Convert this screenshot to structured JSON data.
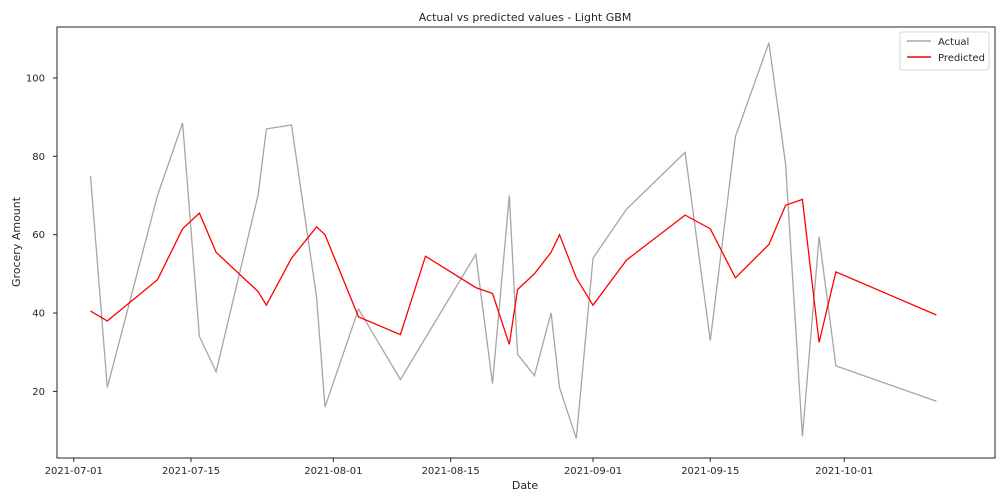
{
  "chart_data": {
    "type": "line",
    "title": "Actual vs predicted values - Light GBM",
    "xlabel": "Date",
    "ylabel": "Grocery Amount",
    "xlim": [
      "2021-06-29",
      "2021-10-19"
    ],
    "ylim": [
      3,
      113
    ],
    "x_ticks": [
      "2021-07-01",
      "2021-07-15",
      "2021-08-01",
      "2021-08-15",
      "2021-09-01",
      "2021-09-15",
      "2021-10-01"
    ],
    "y_ticks": [
      20,
      40,
      60,
      80,
      100
    ],
    "grid": false,
    "legend_position": "top-right",
    "series": [
      {
        "name": "Actual",
        "color": "#a6a6a6",
        "points": [
          [
            "2021-07-03",
            75
          ],
          [
            "2021-07-05",
            21
          ],
          [
            "2021-07-11",
            70
          ],
          [
            "2021-07-14",
            88.5
          ],
          [
            "2021-07-16",
            34
          ],
          [
            "2021-07-18",
            25
          ],
          [
            "2021-07-23",
            70
          ],
          [
            "2021-07-24",
            87
          ],
          [
            "2021-07-27",
            88
          ],
          [
            "2021-07-30",
            44
          ],
          [
            "2021-07-31",
            16
          ],
          [
            "2021-08-04",
            41
          ],
          [
            "2021-08-09",
            23
          ],
          [
            "2021-08-18",
            55
          ],
          [
            "2021-08-20",
            22
          ],
          [
            "2021-08-22",
            70
          ],
          [
            "2021-08-23",
            29.5
          ],
          [
            "2021-08-25",
            24
          ],
          [
            "2021-08-27",
            40
          ],
          [
            "2021-08-28",
            21
          ],
          [
            "2021-08-30",
            8
          ],
          [
            "2021-09-01",
            54
          ],
          [
            "2021-09-05",
            66.5
          ],
          [
            "2021-09-12",
            81
          ],
          [
            "2021-09-15",
            33
          ],
          [
            "2021-09-18",
            85
          ],
          [
            "2021-09-22",
            109
          ],
          [
            "2021-09-24",
            78
          ],
          [
            "2021-09-26",
            8.5
          ],
          [
            "2021-09-28",
            59.5
          ],
          [
            "2021-09-30",
            26.5
          ],
          [
            "2021-10-12",
            17.5
          ]
        ]
      },
      {
        "name": "Predicted",
        "color": "#ff0000",
        "points": [
          [
            "2021-07-03",
            40.5
          ],
          [
            "2021-07-05",
            38
          ],
          [
            "2021-07-11",
            48.5
          ],
          [
            "2021-07-14",
            61.5
          ],
          [
            "2021-07-16",
            65.5
          ],
          [
            "2021-07-18",
            55.5
          ],
          [
            "2021-07-23",
            45.5
          ],
          [
            "2021-07-24",
            42
          ],
          [
            "2021-07-27",
            54
          ],
          [
            "2021-07-30",
            62
          ],
          [
            "2021-07-31",
            60
          ],
          [
            "2021-08-04",
            39
          ],
          [
            "2021-08-09",
            34.5
          ],
          [
            "2021-08-12",
            54.5
          ],
          [
            "2021-08-18",
            46.5
          ],
          [
            "2021-08-20",
            45
          ],
          [
            "2021-08-22",
            32
          ],
          [
            "2021-08-23",
            46
          ],
          [
            "2021-08-25",
            50
          ],
          [
            "2021-08-27",
            55.5
          ],
          [
            "2021-08-28",
            60
          ],
          [
            "2021-08-30",
            49
          ],
          [
            "2021-09-01",
            42
          ],
          [
            "2021-09-05",
            53.5
          ],
          [
            "2021-09-12",
            65
          ],
          [
            "2021-09-15",
            61.5
          ],
          [
            "2021-09-18",
            49
          ],
          [
            "2021-09-22",
            57.5
          ],
          [
            "2021-09-24",
            67.5
          ],
          [
            "2021-09-26",
            69
          ],
          [
            "2021-09-28",
            32.5
          ],
          [
            "2021-09-30",
            50.5
          ],
          [
            "2021-10-12",
            39.5
          ]
        ]
      }
    ]
  }
}
